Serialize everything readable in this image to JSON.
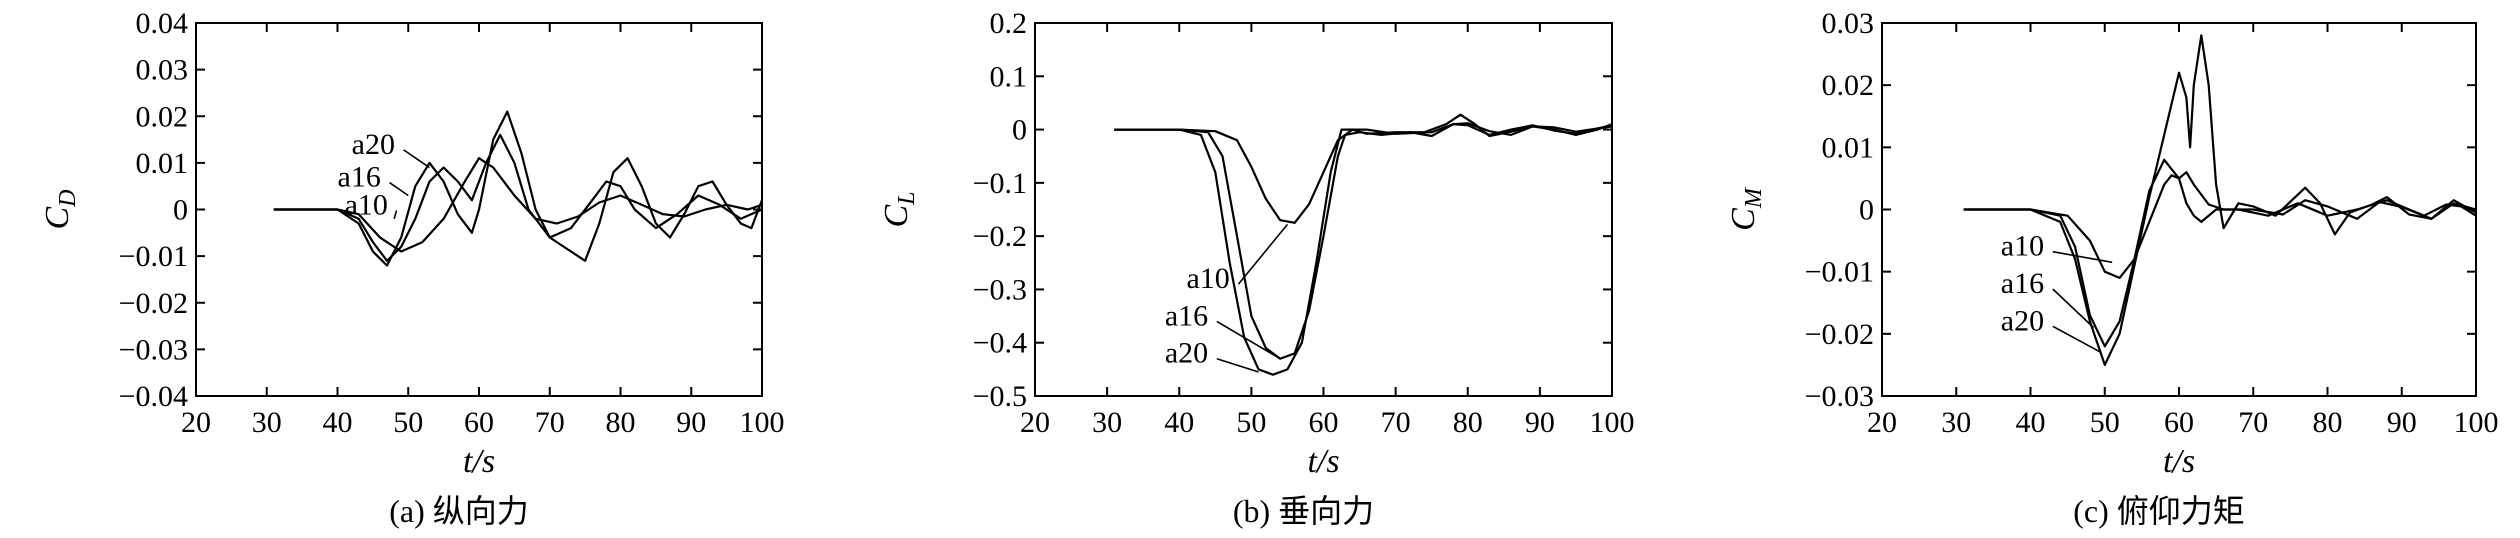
{
  "chart_data": [
    {
      "type": "line",
      "caption": "(a) 纵向力",
      "ylabel": {
        "main": "C",
        "sub": "D"
      },
      "xlabel": "t/s",
      "xlim": [
        20,
        100
      ],
      "ylim": [
        -0.04,
        0.04
      ],
      "xticks": [
        20,
        30,
        40,
        50,
        60,
        70,
        80,
        90,
        100
      ],
      "yticks": [
        "-0.04",
        "-0.03",
        "-0.02",
        "-0.01",
        "0",
        "0.01",
        "0.02",
        "0.03",
        "0.04"
      ],
      "series": [
        {
          "name": "a10",
          "points": [
            [
              31,
              0
            ],
            [
              40,
              0
            ],
            [
              43,
              -0.001
            ],
            [
              46,
              -0.006
            ],
            [
              49,
              -0.009
            ],
            [
              52,
              -0.007
            ],
            [
              55,
              -0.002
            ],
            [
              58,
              0.006
            ],
            [
              60,
              0.011
            ],
            [
              62,
              0.009
            ],
            [
              65,
              0.003
            ],
            [
              68,
              -0.002
            ],
            [
              71,
              -0.003
            ],
            [
              74,
              -0.0015
            ],
            [
              77,
              0.0015
            ],
            [
              80,
              0.003
            ],
            [
              83,
              0.001
            ],
            [
              86,
              -0.001
            ],
            [
              89,
              -0.0015
            ],
            [
              92,
              0
            ],
            [
              95,
              0.001
            ],
            [
              98,
              0
            ],
            [
              100,
              0.001
            ]
          ]
        },
        {
          "name": "a16",
          "points": [
            [
              31,
              0
            ],
            [
              40,
              0
            ],
            [
              43,
              -0.002
            ],
            [
              45,
              -0.007
            ],
            [
              47,
              -0.011
            ],
            [
              49,
              -0.008
            ],
            [
              51,
              -0.002
            ],
            [
              53,
              0.006
            ],
            [
              55,
              0.009
            ],
            [
              57,
              0.006
            ],
            [
              59,
              0.002
            ],
            [
              61,
              0.01
            ],
            [
              63,
              0.016
            ],
            [
              65,
              0.01
            ],
            [
              67,
              0
            ],
            [
              70,
              -0.006
            ],
            [
              73,
              -0.004
            ],
            [
              76,
              0.002
            ],
            [
              78,
              0.006
            ],
            [
              80,
              0.005
            ],
            [
              82,
              0
            ],
            [
              85,
              -0.004
            ],
            [
              88,
              -0.001
            ],
            [
              91,
              0.003
            ],
            [
              94,
              0.001
            ],
            [
              97,
              -0.002
            ],
            [
              100,
              0
            ]
          ]
        },
        {
          "name": "a20",
          "points": [
            [
              31,
              0
            ],
            [
              40,
              0
            ],
            [
              43,
              -0.003
            ],
            [
              45,
              -0.009
            ],
            [
              47,
              -0.012
            ],
            [
              49,
              -0.006
            ],
            [
              51,
              0.005
            ],
            [
              53,
              0.01
            ],
            [
              55,
              0.006
            ],
            [
              57,
              -0.001
            ],
            [
              59,
              -0.005
            ],
            [
              60,
              0
            ],
            [
              62,
              0.015
            ],
            [
              64,
              0.021
            ],
            [
              66,
              0.012
            ],
            [
              68,
              0
            ],
            [
              70,
              -0.006
            ],
            [
              73,
              -0.009
            ],
            [
              75,
              -0.011
            ],
            [
              77,
              -0.003
            ],
            [
              79,
              0.008
            ],
            [
              81,
              0.011
            ],
            [
              83,
              0.005
            ],
            [
              85,
              -0.003
            ],
            [
              87,
              -0.006
            ],
            [
              89,
              -0.001
            ],
            [
              91,
              0.005
            ],
            [
              93,
              0.006
            ],
            [
              95,
              0.001
            ],
            [
              97,
              -0.003
            ],
            [
              98.5,
              -0.004
            ],
            [
              100,
              0.002
            ]
          ]
        }
      ],
      "annotations": [
        {
          "text": "a20",
          "x": 42,
          "y": 0.0145,
          "target_x": 53,
          "target_y": 0.009
        },
        {
          "text": "a16",
          "x": 40,
          "y": 0.0075,
          "target_x": 50,
          "target_y": 0.003
        },
        {
          "text": "a10",
          "x": 41,
          "y": 0.0015,
          "target_x": 48,
          "target_y": -0.002
        }
      ]
    },
    {
      "type": "line",
      "caption": "(b) 垂向力",
      "ylabel": {
        "main": "C",
        "sub": "L"
      },
      "xlabel": "t/s",
      "xlim": [
        20,
        100
      ],
      "ylim": [
        -0.5,
        0.2
      ],
      "xticks": [
        20,
        30,
        40,
        50,
        60,
        70,
        80,
        90,
        100
      ],
      "yticks": [
        "-0.5",
        "-0.4",
        "-0.3",
        "-0.2",
        "-0.1",
        "0",
        "0.1",
        "0.2"
      ],
      "series": [
        {
          "name": "a10",
          "points": [
            [
              31,
              0
            ],
            [
              40,
              0
            ],
            [
              45,
              -0.003
            ],
            [
              48,
              -0.02
            ],
            [
              50,
              -0.07
            ],
            [
              52,
              -0.13
            ],
            [
              54,
              -0.17
            ],
            [
              56,
              -0.175
            ],
            [
              58,
              -0.14
            ],
            [
              60,
              -0.08
            ],
            [
              62,
              -0.02
            ],
            [
              64,
              0
            ],
            [
              66,
              0
            ],
            [
              70,
              -0.008
            ],
            [
              75,
              -0.005
            ],
            [
              78,
              0.01
            ],
            [
              80,
              0.012
            ],
            [
              83,
              -0.003
            ],
            [
              86,
              -0.01
            ],
            [
              89,
              0.006
            ],
            [
              92,
              0.004
            ],
            [
              95,
              -0.004
            ],
            [
              98,
              0.002
            ],
            [
              100,
              0.006
            ]
          ]
        },
        {
          "name": "a16",
          "points": [
            [
              31,
              0
            ],
            [
              40,
              0
            ],
            [
              44,
              -0.005
            ],
            [
              46,
              -0.05
            ],
            [
              48,
              -0.2
            ],
            [
              50,
              -0.35
            ],
            [
              52,
              -0.41
            ],
            [
              54,
              -0.43
            ],
            [
              56,
              -0.42
            ],
            [
              58,
              -0.34
            ],
            [
              60,
              -0.2
            ],
            [
              62,
              -0.05
            ],
            [
              63,
              -0.01
            ],
            [
              65,
              -0.005
            ],
            [
              68,
              -0.01
            ],
            [
              72,
              -0.005
            ],
            [
              75,
              -0.012
            ],
            [
              78,
              0.01
            ],
            [
              80,
              0.008
            ],
            [
              83,
              -0.01
            ],
            [
              86,
              0
            ],
            [
              89,
              0.008
            ],
            [
              92,
              -0.002
            ],
            [
              95,
              -0.008
            ],
            [
              98,
              0.002
            ],
            [
              100,
              0.008
            ]
          ]
        },
        {
          "name": "a20",
          "points": [
            [
              31,
              0
            ],
            [
              40,
              0
            ],
            [
              43,
              -0.01
            ],
            [
              45,
              -0.08
            ],
            [
              47,
              -0.25
            ],
            [
              49,
              -0.39
            ],
            [
              51,
              -0.45
            ],
            [
              53,
              -0.46
            ],
            [
              55,
              -0.45
            ],
            [
              57,
              -0.4
            ],
            [
              59,
              -0.25
            ],
            [
              61,
              -0.08
            ],
            [
              62.5,
              0
            ],
            [
              64,
              0
            ],
            [
              66,
              -0.008
            ],
            [
              70,
              -0.005
            ],
            [
              74,
              -0.005
            ],
            [
              77,
              0.01
            ],
            [
              79,
              0.028
            ],
            [
              81,
              0.01
            ],
            [
              83,
              -0.012
            ],
            [
              86,
              -0.004
            ],
            [
              89,
              0.006
            ],
            [
              92,
              0
            ],
            [
              95,
              -0.01
            ],
            [
              98,
              0
            ],
            [
              100,
              0.01
            ]
          ]
        }
      ],
      "annotations": [
        {
          "text": "a10",
          "x": 41,
          "y": -0.275,
          "target_x": 55,
          "target_y": -0.178
        },
        {
          "text": "a16",
          "x": 38,
          "y": -0.345,
          "target_x": 54,
          "target_y": -0.43
        },
        {
          "text": "a20",
          "x": 38,
          "y": -0.415,
          "target_x": 51,
          "target_y": -0.455
        }
      ]
    },
    {
      "type": "line",
      "caption": "(c) 俯仰力矩",
      "ylabel": {
        "main": "C",
        "sub": "M"
      },
      "xlabel": "t/s",
      "xlim": [
        20,
        100
      ],
      "ylim": [
        -0.03,
        0.03
      ],
      "xticks": [
        20,
        30,
        40,
        50,
        60,
        70,
        80,
        90,
        100
      ],
      "yticks": [
        "-0.03",
        "-0.02",
        "-0.01",
        "0",
        "0.01",
        "0.02",
        "0.03"
      ],
      "series": [
        {
          "name": "a10",
          "points": [
            [
              31,
              0
            ],
            [
              40,
              0
            ],
            [
              45,
              -0.001
            ],
            [
              48,
              -0.005
            ],
            [
              50,
              -0.01
            ],
            [
              52,
              -0.011
            ],
            [
              54,
              -0.008
            ],
            [
              56,
              -0.002
            ],
            [
              58,
              0.004
            ],
            [
              59,
              0.0055
            ],
            [
              60,
              0.005
            ],
            [
              61,
              0.006
            ],
            [
              62,
              0.004
            ],
            [
              64,
              0.0008
            ],
            [
              66,
              0
            ],
            [
              70,
              0
            ],
            [
              74,
              -0.0008
            ],
            [
              77,
              0.0015
            ],
            [
              80,
              0.0005
            ],
            [
              84,
              -0.0015
            ],
            [
              87,
              0.0012
            ],
            [
              90,
              0.0004
            ],
            [
              93,
              -0.001
            ],
            [
              96,
              0.0008
            ],
            [
              98,
              0.0005
            ],
            [
              100,
              -0.001
            ]
          ]
        },
        {
          "name": "a16",
          "points": [
            [
              31,
              0
            ],
            [
              40,
              0
            ],
            [
              44,
              -0.001
            ],
            [
              46,
              -0.006
            ],
            [
              48,
              -0.017
            ],
            [
              50,
              -0.022
            ],
            [
              52,
              -0.018
            ],
            [
              54,
              -0.008
            ],
            [
              56,
              0.003
            ],
            [
              58,
              0.008
            ],
            [
              60,
              0.005
            ],
            [
              61,
              0.001
            ],
            [
              62,
              -0.001
            ],
            [
              63,
              -0.002
            ],
            [
              65,
              0
            ],
            [
              68,
              0
            ],
            [
              72,
              -0.001
            ],
            [
              76,
              0.001
            ],
            [
              80,
              -0.001
            ],
            [
              84,
              0
            ],
            [
              88,
              0.0015
            ],
            [
              91,
              0
            ],
            [
              94,
              -0.0015
            ],
            [
              97,
              0.001
            ],
            [
              100,
              0
            ]
          ]
        },
        {
          "name": "a20",
          "points": [
            [
              31,
              0
            ],
            [
              40,
              0
            ],
            [
              44,
              -0.002
            ],
            [
              46,
              -0.008
            ],
            [
              48,
              -0.018
            ],
            [
              50,
              -0.025
            ],
            [
              52,
              -0.02
            ],
            [
              54,
              -0.009
            ],
            [
              56,
              0.002
            ],
            [
              58,
              0.012
            ],
            [
              60,
              0.022
            ],
            [
              61,
              0.018
            ],
            [
              61.5,
              0.01
            ],
            [
              62,
              0.02
            ],
            [
              63,
              0.028
            ],
            [
              64,
              0.02
            ],
            [
              65,
              0.004
            ],
            [
              66,
              -0.003
            ],
            [
              68,
              0.001
            ],
            [
              70,
              0.0005
            ],
            [
              73,
              -0.001
            ],
            [
              77,
              0.0035
            ],
            [
              79,
              0.001
            ],
            [
              81,
              -0.004
            ],
            [
              83,
              -0.0005
            ],
            [
              86,
              0.0008
            ],
            [
              88,
              0.002
            ],
            [
              91,
              -0.0008
            ],
            [
              94,
              -0.0015
            ],
            [
              97,
              0.0015
            ],
            [
              100,
              -0.0005
            ]
          ]
        }
      ],
      "annotations": [
        {
          "text": "a10",
          "x": 36,
          "y": -0.0055,
          "target_x": 51,
          "target_y": -0.0085
        },
        {
          "text": "a16",
          "x": 36,
          "y": -0.0115,
          "target_x": 48.5,
          "target_y": -0.019
        },
        {
          "text": "a20",
          "x": 36,
          "y": -0.0175,
          "target_x": 49.5,
          "target_y": -0.023
        }
      ]
    }
  ]
}
